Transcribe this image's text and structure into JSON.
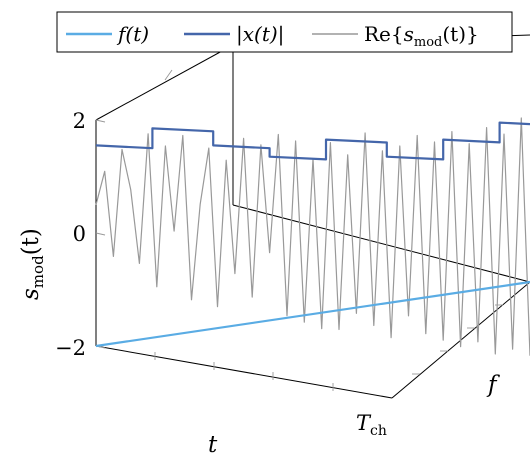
{
  "chart_data": {
    "type": "line",
    "projection": "3d",
    "axes": {
      "t": {
        "label": "t",
        "tick_labels": [
          "T_ch"
        ]
      },
      "f": {
        "label": "f"
      },
      "z": {
        "label": "s_mod(t)",
        "ticks": [
          2,
          0,
          -2
        ],
        "tick_labels": [
          "2",
          "0",
          "−2"
        ],
        "range": [
          -2,
          2.5
        ]
      }
    },
    "tick_text": {
      "t_end_main": "T",
      "t_end_sub": "ch",
      "z_label_main": "s",
      "z_label_sub": "mod",
      "z_label_paren": "(t)"
    },
    "legend": {
      "placement": "top",
      "entries": [
        {
          "key": "f",
          "label": "f(t)",
          "color": "#5aace4"
        },
        {
          "key": "abs",
          "label": "|x(t)|",
          "color": "#4466aa"
        },
        {
          "key": "re",
          "label": "Re{s_mod(t)}",
          "color": "#999999"
        }
      ],
      "text": {
        "f": "f(t)",
        "abs": "|x(t)|",
        "re_prefix": "Re{",
        "re_s": "s",
        "re_sub": "mod",
        "re_suffix": "(t)}"
      }
    },
    "series": [
      {
        "name": "|x(t)|",
        "color": "#4466aa",
        "t": [
          0.0,
          0.13,
          0.13,
          0.27,
          0.27,
          0.4,
          0.4,
          0.53,
          0.53,
          0.67,
          0.67,
          0.8,
          0.8,
          0.93,
          0.93,
          1.0
        ],
        "z": [
          1.55,
          1.55,
          1.9,
          1.9,
          1.65,
          1.65,
          1.5,
          1.5,
          1.85,
          1.85,
          1.6,
          1.6,
          1.95,
          1.95,
          2.3,
          2.3
        ]
      },
      {
        "name": "Re{s_mod(t)}",
        "color": "#999999",
        "t": [
          0.0,
          0.02,
          0.04,
          0.06,
          0.08,
          0.1,
          0.12,
          0.14,
          0.16,
          0.18,
          0.2,
          0.22,
          0.24,
          0.26,
          0.28,
          0.3,
          0.32,
          0.34,
          0.36,
          0.38,
          0.4,
          0.42,
          0.44,
          0.46,
          0.48,
          0.5,
          0.52,
          0.54,
          0.56,
          0.58,
          0.6,
          0.62,
          0.64,
          0.66,
          0.68,
          0.7,
          0.72,
          0.74,
          0.76,
          0.78,
          0.8,
          0.82,
          0.84,
          0.86,
          0.88,
          0.9,
          0.92,
          0.94,
          0.96,
          0.98,
          1.0
        ],
        "z": [
          0.5,
          1.1,
          -0.4,
          1.5,
          0.8,
          -0.5,
          1.8,
          -0.9,
          1.6,
          0.1,
          1.8,
          -1.1,
          0.6,
          1.6,
          -1.2,
          1.4,
          -0.6,
          1.8,
          -1.0,
          1.7,
          -0.2,
          1.9,
          -1.3,
          1.8,
          -1.4,
          1.5,
          -1.5,
          1.8,
          -1.5,
          1.6,
          -1.2,
          2.0,
          -1.4,
          1.7,
          -1.6,
          1.8,
          -1.2,
          2.0,
          -1.5,
          1.9,
          -1.6,
          2.1,
          -1.7,
          1.9,
          -1.6,
          2.2,
          -1.8,
          2.1,
          -1.7,
          2.4,
          -1.8
        ]
      },
      {
        "name": "f(t)",
        "color": "#5aace4",
        "t": [
          0.0,
          1.0
        ],
        "f": [
          0.0,
          1.0
        ],
        "z": [
          -2,
          -2
        ]
      }
    ]
  }
}
